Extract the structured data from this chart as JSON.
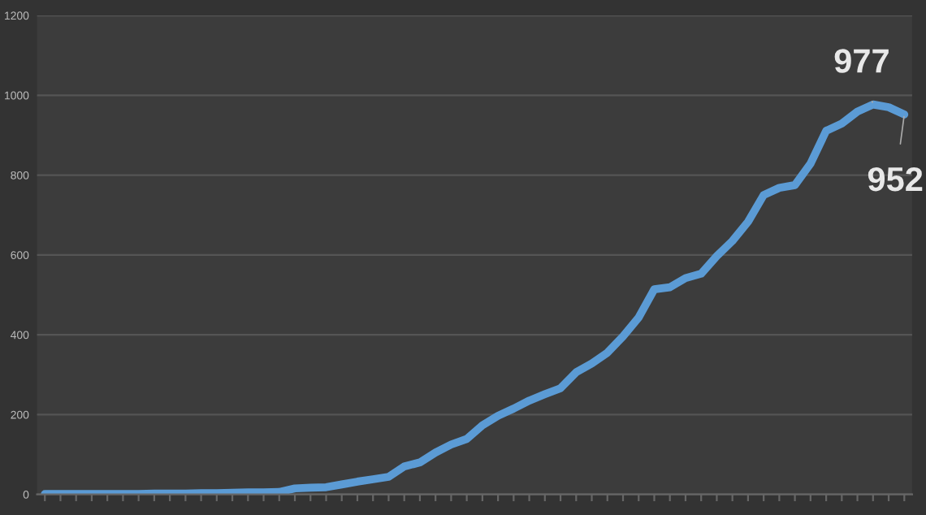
{
  "chart_data": {
    "type": "line",
    "categories": [
      null,
      null,
      null,
      null,
      null,
      null,
      null,
      null,
      null,
      null,
      null,
      null,
      null,
      null,
      null,
      null,
      null,
      null,
      null,
      null,
      null,
      null,
      null,
      null,
      null,
      null,
      null,
      null,
      null,
      null,
      null,
      null,
      null,
      null,
      null,
      null,
      null,
      null,
      null,
      null,
      null,
      null,
      null,
      null,
      null,
      null,
      null,
      null,
      null,
      null,
      null,
      null,
      null,
      null,
      null,
      null
    ],
    "series": [
      {
        "color": "#5b9bd5",
        "values": [
          1,
          1,
          1,
          1,
          1,
          1,
          1,
          2,
          2,
          2,
          3,
          3,
          4,
          5,
          5,
          6,
          15,
          17,
          18,
          25,
          32,
          38,
          44,
          70,
          80,
          105,
          125,
          139,
          173,
          197,
          215,
          235,
          251,
          266,
          306,
          328,
          355,
          396,
          443,
          514,
          519,
          542,
          553,
          597,
          635,
          683,
          750,
          768,
          775,
          829,
          911,
          929,
          959,
          977,
          970,
          952
        ],
        "value_labels": [
          null,
          null,
          null,
          null,
          null,
          null,
          null,
          null,
          null,
          null,
          null,
          null,
          null,
          null,
          null,
          null,
          null,
          null,
          null,
          null,
          null,
          null,
          null,
          null,
          null,
          null,
          null,
          null,
          null,
          null,
          null,
          null,
          null,
          null,
          null,
          null,
          null,
          null,
          null,
          null,
          null,
          null,
          null,
          null,
          null,
          null,
          null,
          null,
          null,
          null,
          null,
          null,
          null,
          "977",
          null,
          "952"
        ]
      }
    ],
    "ylim": [
      0,
      1200
    ],
    "yticks": [
      0,
      200,
      400,
      600,
      800,
      1000,
      1200
    ],
    "grid": "y",
    "legend": false,
    "marker": "none",
    "line_style": "solid"
  }
}
